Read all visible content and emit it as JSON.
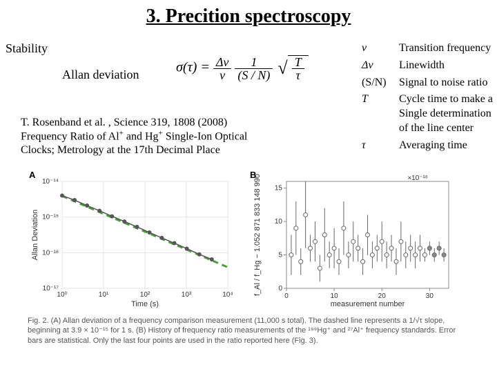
{
  "title": "3. Precition spectroscopy",
  "stability_label": "Stability",
  "allan_label": "Allan deviation",
  "formula": {
    "sigma": "σ(τ)",
    "eq": "=",
    "num1": "Δν",
    "den1": "ν",
    "num2": "1",
    "den2": "(S / N)",
    "rad_num": "T",
    "rad_den": "τ"
  },
  "definitions": [
    {
      "sym": "ν",
      "text": "Transition frequency",
      "italic": true
    },
    {
      "sym": "Δν",
      "text": "Linewidth",
      "italic": true
    },
    {
      "sym": "(S/N)",
      "text": "Signal to noise ratio",
      "italic": false
    },
    {
      "sym": "T",
      "text": "Cycle time to make a\nSingle determination\nof the line center",
      "italic": true
    },
    {
      "sym": "τ",
      "text": "Averaging time",
      "italic": true
    }
  ],
  "citation": {
    "line1": "T. Rosenband et al. , Science 319,  1808 (2008)",
    "line2_pre": "Frequency Ratio of Al",
    "line2_mid": " and Hg",
    "line2_post": " Single-Ion Optical",
    "line3": "Clocks; Metrology at the 17th Decimal Place"
  },
  "panel_a": {
    "label": "A",
    "type": "loglog-scatter",
    "xlabel": "Time (s)",
    "ylabel": "Allan Deviation",
    "xlim": [
      1,
      10000
    ],
    "ylim": [
      1e-17,
      1e-14
    ],
    "xticks": [
      "10⁰",
      "10¹",
      "10²",
      "10³",
      "10⁴"
    ],
    "yticks": [
      "10⁻¹⁷",
      "10⁻¹⁶",
      "10⁻¹⁵",
      "10⁻¹⁴"
    ],
    "data_x": [
      1,
      2,
      4,
      8,
      16,
      32,
      64,
      128,
      256,
      512,
      1024,
      2048,
      4096
    ],
    "data_y": [
      4e-15,
      3e-15,
      2.1e-15,
      1.5e-15,
      1.05e-15,
      7.5e-16,
      5.3e-16,
      3.7e-16,
      2.6e-16,
      1.85e-16,
      1.3e-16,
      9e-17,
      6.5e-17
    ],
    "marker_color": "#555555",
    "line_color": "#555555",
    "dash_line": {
      "cap": 3.9e-15,
      "color": "#4a9d3a",
      "width": 3
    },
    "background": "#ffffff",
    "grid_color": "#e5e5e5"
  },
  "panel_b": {
    "label": "B",
    "type": "errorbar",
    "xlabel": "measurement number",
    "ylabel_top": "×10⁻¹⁶",
    "ylabel": "f_Al / f_Hg − 1.052 871 833 148 990",
    "xlim": [
      0,
      34
    ],
    "ylim": [
      0,
      16
    ],
    "xticks": [
      0,
      10,
      20,
      30
    ],
    "yticks": [
      0,
      5,
      10,
      15
    ],
    "points": [
      {
        "x": 1,
        "y": 5,
        "err": 3
      },
      {
        "x": 2,
        "y": 9,
        "err": 4
      },
      {
        "x": 3,
        "y": 4,
        "err": 2
      },
      {
        "x": 4,
        "y": 11,
        "err": 5
      },
      {
        "x": 5,
        "y": 6,
        "err": 2
      },
      {
        "x": 6,
        "y": 7,
        "err": 3
      },
      {
        "x": 7,
        "y": 3,
        "err": 2
      },
      {
        "x": 8,
        "y": 8,
        "err": 4
      },
      {
        "x": 9,
        "y": 5,
        "err": 2
      },
      {
        "x": 10,
        "y": 6,
        "err": 3
      },
      {
        "x": 11,
        "y": 4,
        "err": 2
      },
      {
        "x": 12,
        "y": 9,
        "err": 4
      },
      {
        "x": 13,
        "y": 5,
        "err": 2
      },
      {
        "x": 14,
        "y": 7,
        "err": 3
      },
      {
        "x": 15,
        "y": 6,
        "err": 2
      },
      {
        "x": 16,
        "y": 4,
        "err": 2
      },
      {
        "x": 17,
        "y": 8,
        "err": 3
      },
      {
        "x": 18,
        "y": 5,
        "err": 2
      },
      {
        "x": 19,
        "y": 6,
        "err": 2
      },
      {
        "x": 20,
        "y": 7,
        "err": 3
      },
      {
        "x": 21,
        "y": 5,
        "err": 2
      },
      {
        "x": 22,
        "y": 6,
        "err": 2
      },
      {
        "x": 23,
        "y": 4,
        "err": 2
      },
      {
        "x": 24,
        "y": 7,
        "err": 3
      },
      {
        "x": 25,
        "y": 5,
        "err": 2
      },
      {
        "x": 26,
        "y": 6,
        "err": 2
      },
      {
        "x": 27,
        "y": 5,
        "err": 2
      },
      {
        "x": 28,
        "y": 6,
        "err": 2
      },
      {
        "x": 29,
        "y": 5,
        "err": 1
      },
      {
        "x": 30,
        "y": 6,
        "err": 1
      },
      {
        "x": 31,
        "y": 5,
        "err": 1
      },
      {
        "x": 32,
        "y": 6,
        "err": 1
      },
      {
        "x": 33,
        "y": 5,
        "err": 1
      }
    ],
    "marker_color": "#666666",
    "final_fill": "#888888",
    "background": "#ffffff"
  },
  "caption": "Fig. 2. (A) Allan deviation of a frequency comparison measurement (11,000 s total). The dashed line represents a 1/√τ slope, beginning at 3.9 × 10⁻¹⁵ for 1 s. (B) History of frequency ratio measurements of the ¹⁹⁹Hg⁺ and ²⁷Al⁺ frequency standards. Error bars are statistical. Only the last four points are used in the ratio reported here (Fig. 3)."
}
